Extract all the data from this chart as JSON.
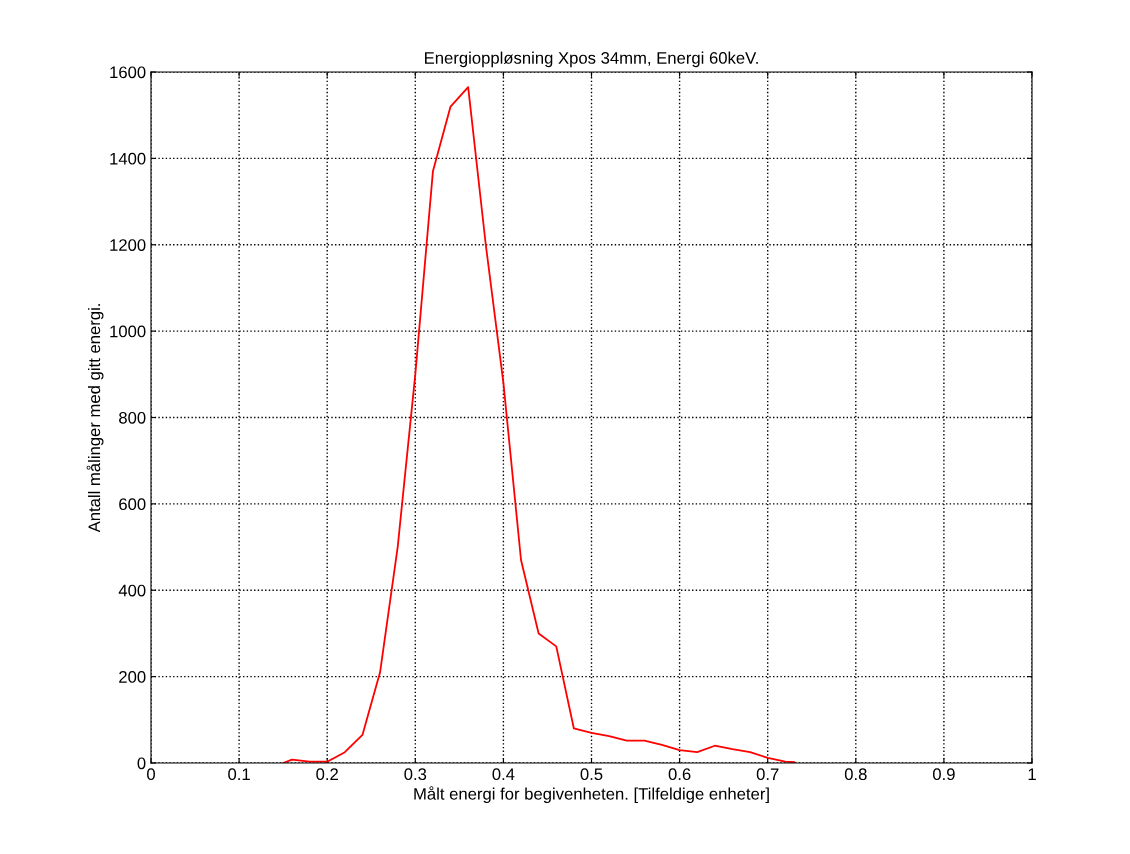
{
  "chart_data": {
    "type": "line",
    "title": "Energioppløsning Xpos 34mm, Energi 60keV.",
    "xlabel": "Målt energi for begivenheten. [Tilfeldige enheter]",
    "ylabel": "Antall målinger med gitt energi.",
    "x": [
      0.15,
      0.16,
      0.18,
      0.2,
      0.22,
      0.24,
      0.26,
      0.28,
      0.3,
      0.32,
      0.34,
      0.36,
      0.38,
      0.4,
      0.42,
      0.44,
      0.46,
      0.48,
      0.5,
      0.52,
      0.54,
      0.56,
      0.58,
      0.6,
      0.62,
      0.64,
      0.66,
      0.68,
      0.7,
      0.72,
      0.73
    ],
    "series": [
      {
        "color": "#ff0000",
        "values": [
          0,
          8,
          3,
          3,
          25,
          65,
          210,
          500,
          900,
          1370,
          1520,
          1565,
          1200,
          880,
          470,
          300,
          270,
          80,
          70,
          62,
          52,
          52,
          42,
          30,
          25,
          40,
          32,
          25,
          12,
          3,
          2
        ]
      }
    ],
    "xlim": [
      0,
      1
    ],
    "xticks": [
      0,
      0.1,
      0.2,
      0.3,
      0.4,
      0.5,
      0.6,
      0.7,
      0.8,
      0.9,
      1
    ],
    "ylim": [
      0,
      1600
    ],
    "yticks": [
      0,
      200,
      400,
      600,
      800,
      1000,
      1200,
      1400,
      1600
    ],
    "grid": true,
    "line_style": "solid"
  }
}
